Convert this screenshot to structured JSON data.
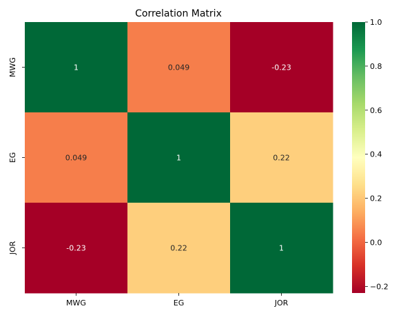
{
  "chart_data": {
    "type": "heatmap",
    "title": "Correlation Matrix",
    "x_labels": [
      "MWG",
      "EG",
      "JOR"
    ],
    "y_labels": [
      "MWG",
      "EG",
      "JOR"
    ],
    "values": [
      [
        1,
        0.049,
        -0.23
      ],
      [
        0.049,
        1,
        0.22
      ],
      [
        -0.23,
        0.22,
        1
      ]
    ],
    "cell_text": [
      [
        "1",
        "0.049",
        "-0.23"
      ],
      [
        "0.049",
        "1",
        "0.22"
      ],
      [
        "-0.23",
        "0.22",
        "1"
      ]
    ],
    "colormap": "RdYlGn",
    "vmin": -0.23,
    "vmax": 1,
    "colorbar_ticks": [
      -0.2,
      0.0,
      0.2,
      0.4,
      0.6,
      0.8,
      1.0
    ],
    "colorbar_tick_labels": [
      "−0.2",
      "0.0",
      "0.2",
      "0.4",
      "0.6",
      "0.8",
      "1.0"
    ],
    "annotated": true
  }
}
